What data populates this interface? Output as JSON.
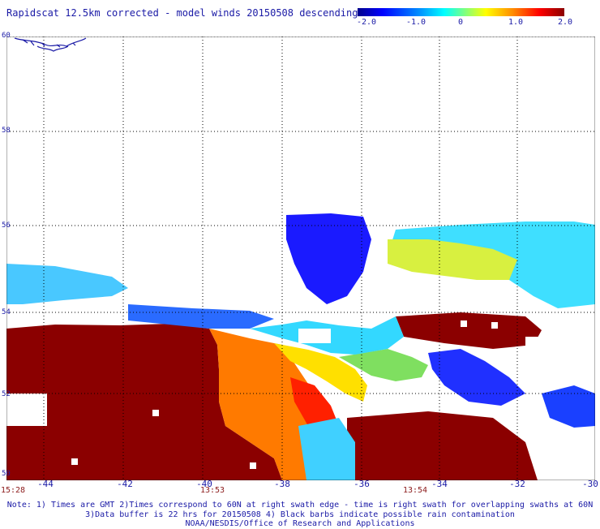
{
  "header": {
    "title": "Rapidscat 12.5km corrected - model winds 20150508 descending"
  },
  "colorbar": {
    "labels": [
      "-2.0",
      "-1.0",
      "0",
      "1.0",
      "2.0"
    ],
    "colors": [
      "#00008c",
      "#0000ff",
      "#0090ff",
      "#00ffff",
      "#7fff7f",
      "#ffff00",
      "#ff8c00",
      "#ff0000",
      "#8b0000"
    ]
  },
  "map": {
    "lat_labels": [
      "60",
      "58",
      "56",
      "54",
      "52",
      "50"
    ],
    "lon_labels": [
      "-44",
      "-42",
      "-40",
      "-38",
      "-36",
      "-34",
      "-32",
      "-30"
    ],
    "time_labels": [
      "15:28",
      "13:53",
      "13:54"
    ],
    "grid_color": "#000000",
    "land_color": "#ffffff",
    "swath_colors": {
      "dark_red": "#8b0000",
      "red": "#ff2000",
      "orange": "#ff9900",
      "yellow": "#ffee00",
      "cyan": "#33e0ff",
      "blue": "#1a1aff"
    }
  },
  "notes": {
    "line1": "Note: 1) Times are GMT 2)Times correspond to 60N at right swath edge - time is right swath for overlapping swaths at 60N",
    "line2": "3)Data buffer is 22 hrs for 20150508 4) Black barbs indicate possible rain contamination",
    "line3": "NOAA/NESDIS/Office of Research and Applications"
  }
}
